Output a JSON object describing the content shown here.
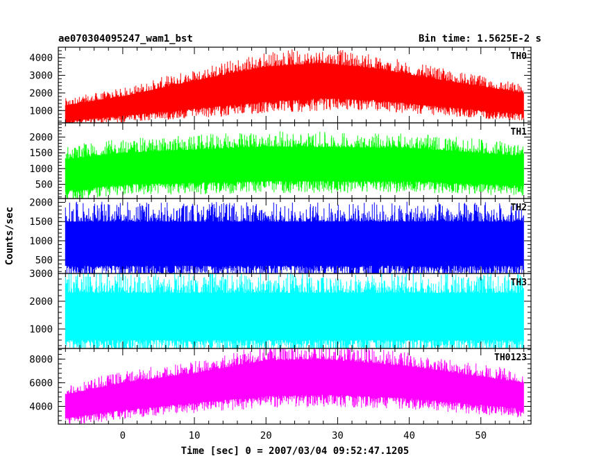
{
  "chart_data": {
    "type": "line",
    "title": "ae070304095247_wam1_bst",
    "bin_time_label": "Bin time: 1.5625E-2 s",
    "xlabel": "Time [sec] 0 = 2007/03/04 09:52:47.1205",
    "ylabel": "Counts/sec",
    "xlim": [
      -9,
      57
    ],
    "x_range": [
      -8,
      56
    ],
    "x_ticks": [
      0,
      10,
      20,
      30,
      40,
      50
    ],
    "series": [
      {
        "name": "TH0",
        "color": "#ff0000",
        "ylim": [
          300,
          4600
        ],
        "y_ticks": [
          1000,
          2000,
          3000,
          4000
        ],
        "envelope": [
          {
            "t": -8,
            "low": 400,
            "high": 1300
          },
          {
            "t": 0,
            "low": 700,
            "high": 1800
          },
          {
            "t": 10,
            "low": 1100,
            "high": 2700
          },
          {
            "t": 20,
            "low": 1500,
            "high": 3500
          },
          {
            "t": 28,
            "low": 1700,
            "high": 3700
          },
          {
            "t": 35,
            "low": 1600,
            "high": 3400
          },
          {
            "t": 45,
            "low": 1200,
            "high": 2700
          },
          {
            "t": 56,
            "low": 800,
            "high": 2000
          }
        ]
      },
      {
        "name": "TH1",
        "color": "#00ff00",
        "ylim": [
          50,
          2450
        ],
        "y_ticks": [
          500,
          1000,
          1500,
          2000
        ],
        "envelope": [
          {
            "t": -8,
            "low": 300,
            "high": 1300
          },
          {
            "t": 0,
            "low": 500,
            "high": 1500
          },
          {
            "t": 20,
            "low": 600,
            "high": 1700
          },
          {
            "t": 40,
            "low": 600,
            "high": 1650
          },
          {
            "t": 56,
            "low": 450,
            "high": 1400
          }
        ]
      },
      {
        "name": "TH2",
        "color": "#0000ff",
        "ylim": [
          150,
          2100
        ],
        "y_ticks": [
          500,
          1000,
          1500,
          2000
        ],
        "envelope": [
          {
            "t": -8,
            "low": 350,
            "high": 1500
          },
          {
            "t": 56,
            "low": 350,
            "high": 1500
          }
        ]
      },
      {
        "name": "TH3",
        "color": "#00ffff",
        "ylim": [
          300,
          3000
        ],
        "y_ticks": [
          1000,
          2000,
          3000
        ],
        "envelope": [
          {
            "t": -8,
            "low": 600,
            "high": 2300
          },
          {
            "t": 56,
            "low": 600,
            "high": 2300
          }
        ]
      },
      {
        "name": "TH0123",
        "color": "#ff00ff",
        "ylim": [
          2500,
          8900
        ],
        "y_ticks": [
          4000,
          6000,
          8000
        ],
        "envelope": [
          {
            "t": -8,
            "low": 3000,
            "high": 5000
          },
          {
            "t": 0,
            "low": 3700,
            "high": 6000
          },
          {
            "t": 10,
            "low": 4300,
            "high": 6800
          },
          {
            "t": 20,
            "low": 4900,
            "high": 7900
          },
          {
            "t": 28,
            "low": 5000,
            "high": 8000
          },
          {
            "t": 40,
            "low": 4700,
            "high": 7400
          },
          {
            "t": 56,
            "low": 3800,
            "high": 6000
          }
        ]
      }
    ]
  }
}
